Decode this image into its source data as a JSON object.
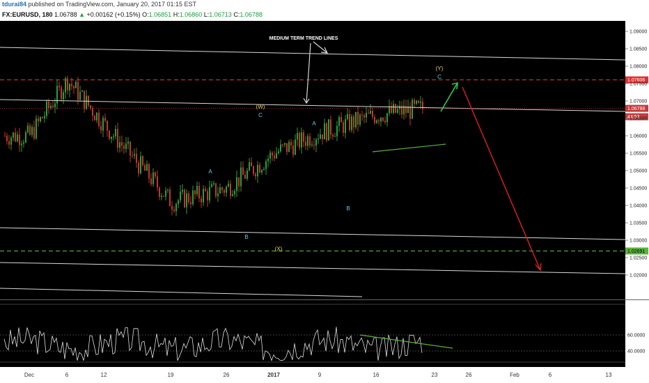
{
  "header": {
    "username": "tdurai84",
    "published_text": "published on TradingView.com, January 20, 2017 01:15 EST"
  },
  "symbol_bar": {
    "symbol": "FX:EURUSD, 180",
    "price": "1.06788",
    "change": "+0.00162 (+0.15%)",
    "open_label": "O:",
    "open": "1.06851",
    "high_label": "H:",
    "high": "1.06860",
    "low_label": "L:",
    "low": "1.06713",
    "close_label": "C:",
    "close": "1.06788"
  },
  "colors": {
    "background": "#000000",
    "bull": "#2e9e3a",
    "bear": "#c0392b",
    "trendline": "#d9d9d9",
    "resistance_line": "#e03030",
    "support_line": "#5ab33c",
    "green_arrow": "#2ecc40",
    "red_arrow": "#e02020",
    "wave_yellow": "#f5d04a",
    "wave_cyan": "#5fd0e0"
  },
  "annotation": {
    "trend_label": "MEDIUM TERM TREND LINES"
  },
  "wave_labels": [
    "(W)",
    "C",
    "A",
    "B",
    "(X)",
    "A",
    "B",
    "(Y)",
    "C",
    "A",
    "B"
  ],
  "price_badges": {
    "resistance": "1.07606",
    "current": "1.06788",
    "countdown": "44:53",
    "support": "1.02691"
  },
  "rsi_badges": [
    "60.0000",
    "40.0000"
  ],
  "chart_data": [
    {
      "type": "candlestick",
      "symbol": "FX:EURUSD",
      "interval": "180",
      "y_axis_ticks": [
        "1.09000",
        "1.08500",
        "1.08000",
        "1.07500",
        "1.07000",
        "1.06500",
        "1.06000",
        "1.05500",
        "1.05000",
        "1.04500",
        "1.04000",
        "1.03500",
        "1.03000",
        "1.02500",
        "1.02000"
      ],
      "ylim": [
        1.018,
        1.0915
      ],
      "x_axis_ticks": [
        "Dec",
        "6",
        "12",
        "19",
        "26",
        "2017",
        "9",
        "16",
        "23",
        "26",
        "Feb",
        "6",
        "13"
      ],
      "series_close_approx": [
        {
          "x": "Dec",
          "y": 1.06
        },
        {
          "x": "6",
          "y": 1.076
        },
        {
          "x": "12",
          "y": 1.063
        },
        {
          "x": "19",
          "y": 1.041
        },
        {
          "x": "26",
          "y": 1.045
        },
        {
          "x": "2017",
          "y": 1.055
        },
        {
          "x": "9",
          "y": 1.061
        },
        {
          "x": "16",
          "y": 1.066
        },
        {
          "x": "23",
          "y": 1.06788
        }
      ],
      "horizontal_levels": {
        "resistance": 1.07606,
        "current": 1.06788,
        "support": 1.02691
      }
    },
    {
      "type": "line",
      "name": "RSI",
      "levels": [
        60,
        40
      ],
      "x_axis_ticks": [
        "Dec",
        "6",
        "12",
        "19",
        "26",
        "2017",
        "9",
        "16",
        "23",
        "26",
        "Feb",
        "6",
        "13"
      ]
    }
  ]
}
